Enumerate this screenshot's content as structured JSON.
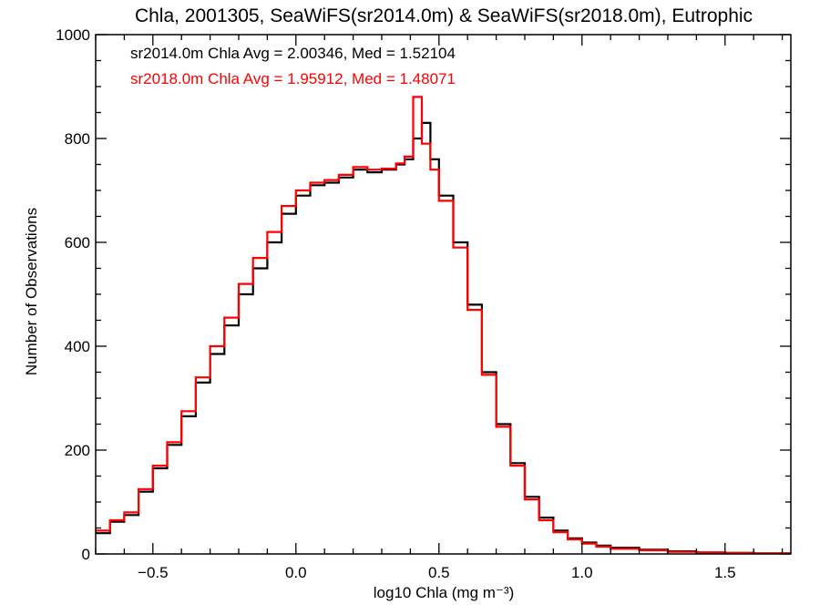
{
  "chart_data": {
    "type": "line",
    "title": "Chla, 2001305, SeaWiFS(sr2014.0m) & SeaWiFS(sr2018.0m), Eutrophic",
    "xlabel": "log10 Chla (mg m⁻³)",
    "ylabel": "Number of Observations",
    "xlim": [
      -0.7,
      1.73
    ],
    "ylim": [
      0,
      1000
    ],
    "x_ticks": [
      -0.5,
      0.0,
      0.5,
      1.0,
      1.5
    ],
    "x_tick_labels": [
      "−0.5",
      "0.0",
      "0.5",
      "1.0",
      "1.5"
    ],
    "y_ticks": [
      0,
      200,
      400,
      600,
      800,
      1000
    ],
    "y_tick_labels": [
      "0",
      "200",
      "400",
      "600",
      "800",
      "1000"
    ],
    "grid": false,
    "annotations": [
      {
        "text": "sr2014.0m Chla Avg = 2.00346, Med = 1.52104",
        "color": "#000000"
      },
      {
        "text": "sr2018.0m Chla Avg = 1.95912, Med = 1.48071",
        "color": "#ff0000"
      }
    ],
    "series": [
      {
        "color": "#000000",
        "x": [
          -0.7,
          -0.65,
          -0.6,
          -0.55,
          -0.5,
          -0.45,
          -0.4,
          -0.35,
          -0.3,
          -0.25,
          -0.2,
          -0.15,
          -0.1,
          -0.05,
          0.0,
          0.05,
          0.1,
          0.15,
          0.2,
          0.25,
          0.3,
          0.35,
          0.38,
          0.41,
          0.44,
          0.47,
          0.5,
          0.55,
          0.6,
          0.65,
          0.7,
          0.75,
          0.8,
          0.85,
          0.9,
          0.95,
          1.0,
          1.05,
          1.1,
          1.2,
          1.3,
          1.4,
          1.5,
          1.6,
          1.73
        ],
        "values": [
          40,
          62,
          75,
          120,
          165,
          210,
          265,
          330,
          385,
          440,
          500,
          550,
          600,
          655,
          690,
          710,
          715,
          725,
          740,
          735,
          740,
          750,
          760,
          800,
          830,
          760,
          690,
          600,
          480,
          350,
          250,
          175,
          110,
          70,
          45,
          30,
          22,
          16,
          12,
          8,
          5,
          3,
          2,
          1,
          1
        ]
      },
      {
        "color": "#ff0000",
        "x": [
          -0.7,
          -0.65,
          -0.6,
          -0.55,
          -0.5,
          -0.45,
          -0.4,
          -0.35,
          -0.3,
          -0.25,
          -0.2,
          -0.15,
          -0.1,
          -0.05,
          0.0,
          0.05,
          0.1,
          0.15,
          0.2,
          0.25,
          0.3,
          0.35,
          0.38,
          0.41,
          0.44,
          0.47,
          0.5,
          0.55,
          0.6,
          0.65,
          0.7,
          0.75,
          0.8,
          0.85,
          0.9,
          0.95,
          1.0,
          1.05,
          1.1,
          1.2,
          1.3,
          1.4,
          1.5,
          1.6,
          1.73
        ],
        "values": [
          45,
          65,
          80,
          125,
          170,
          215,
          275,
          340,
          400,
          455,
          520,
          570,
          620,
          670,
          700,
          715,
          720,
          730,
          745,
          740,
          742,
          752,
          765,
          880,
          790,
          740,
          680,
          590,
          470,
          345,
          245,
          170,
          105,
          65,
          42,
          28,
          20,
          14,
          10,
          7,
          4,
          3,
          2,
          1,
          1
        ]
      }
    ]
  }
}
